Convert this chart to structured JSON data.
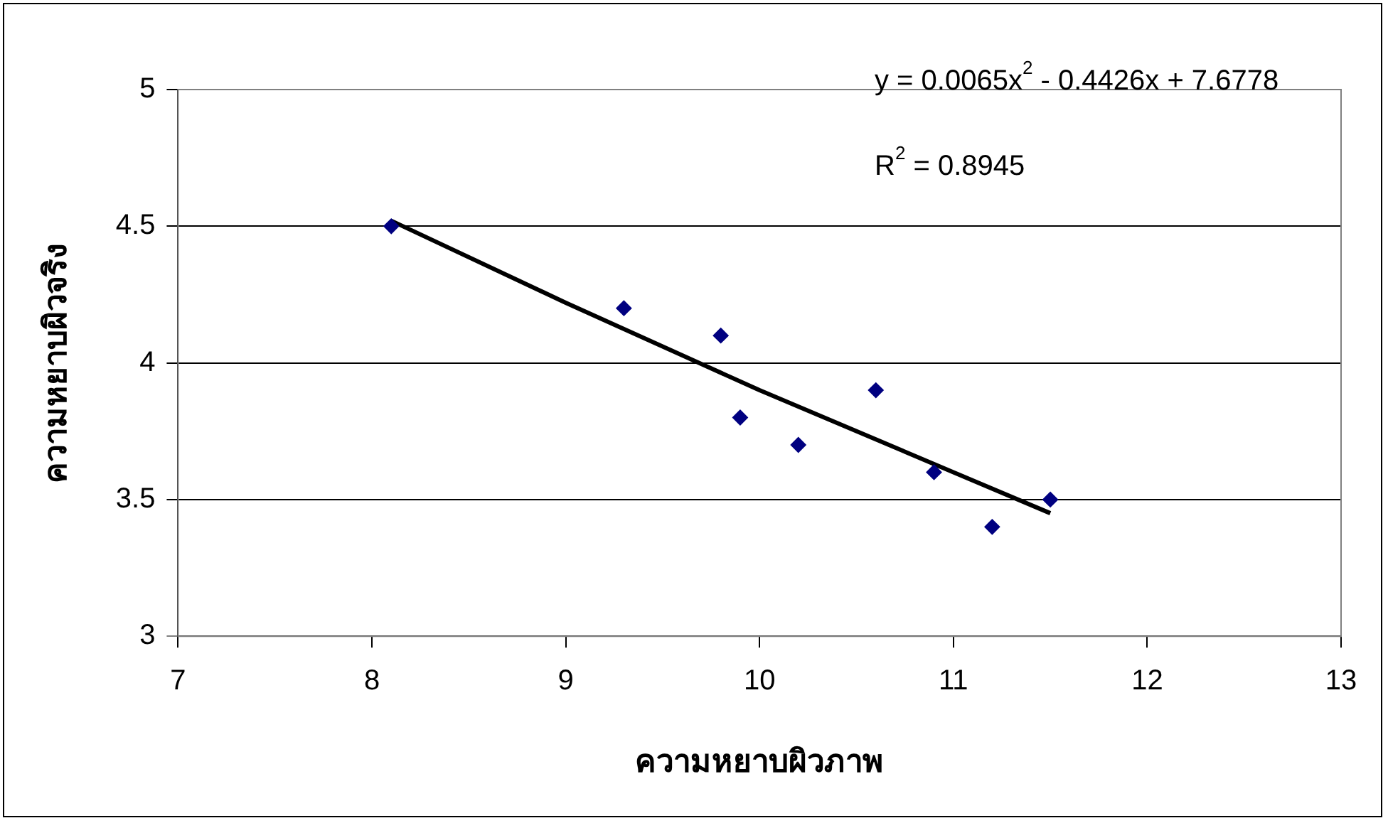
{
  "chart_data": {
    "type": "scatter",
    "xlabel": "ความหยาบผิวภาพ",
    "ylabel": "ความหยาบผิวจริง",
    "xlim": [
      7,
      13
    ],
    "xticks": [
      7,
      8,
      9,
      10,
      11,
      12,
      13
    ],
    "ylim": [
      3,
      5
    ],
    "yticks": [
      3,
      3.5,
      4,
      4.5,
      5
    ],
    "grid": "y",
    "legend": false,
    "marker": "diamond",
    "series": [
      {
        "color": "#000080",
        "x": [
          8.1,
          9.3,
          9.8,
          9.9,
          10.2,
          10.6,
          10.9,
          11.2,
          11.5
        ],
        "values": [
          4.5,
          4.2,
          4.1,
          3.8,
          3.7,
          3.9,
          3.6,
          3.4,
          3.5
        ]
      },
      {
        "type": "line",
        "color": "#000000",
        "marker": "none",
        "x": [
          8.1,
          9,
          10,
          11,
          11.5
        ],
        "values": [
          4.52,
          4.22,
          3.9,
          3.6,
          3.45
        ]
      }
    ],
    "annotations": [
      "y = 0.0065x$^{2}$ - 0.4426x + 7.6778",
      "R$^{2}$ = 0.8945"
    ]
  }
}
